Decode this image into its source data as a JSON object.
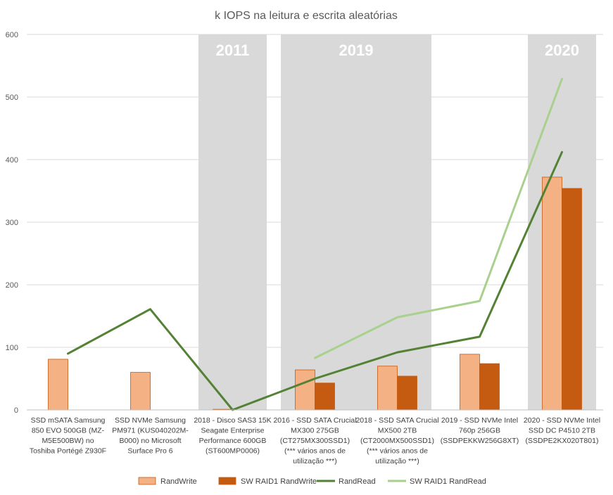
{
  "chart_data": {
    "type": "bar",
    "title": "k IOPS na leitura e escrita aleatórias",
    "xlabel": "",
    "ylabel": "",
    "ylim": [
      0,
      600
    ],
    "yticks": [
      0,
      100,
      200,
      300,
      400,
      500,
      600
    ],
    "grid": true,
    "legend_position": "bottom",
    "categories": [
      [
        "SSD mSATA Samsung",
        "850 EVO 500GB (MZ-",
        "M5E500BW) no",
        "Toshiba Portégé Z930F"
      ],
      [
        "SSD NVMe Samsung",
        "PM971 (KUS040202M-",
        "B000) no Microsoft",
        "Surface Pro 6"
      ],
      [
        "2018 - Disco SAS3 15K",
        "Seagate Enterprise",
        "Performance 600GB",
        "(ST600MP0006)"
      ],
      [
        "2016 - SSD SATA Crucial",
        "MX300 275GB",
        "(CT275MX300SSD1)",
        "(*** vários anos de",
        "utilização ***)"
      ],
      [
        "2018 - SSD SATA Crucial",
        "MX500 2TB",
        "(CT2000MX500SSD1)",
        "(*** vários anos de",
        "utilização ***)"
      ],
      [
        "2019 - SSD NVMe Intel",
        "760p 256GB",
        "(SSDPEKKW256G8XT)"
      ],
      [
        "2020 - SSD NVMe Intel",
        "SSD DC P4510 2TB",
        "(SSDPE2KX020T801)"
      ]
    ],
    "year_bands": [
      {
        "label": "2011",
        "categories": [
          2,
          2
        ]
      },
      {
        "label": "2019",
        "categories": [
          3,
          4
        ]
      },
      {
        "label": "2020",
        "categories": [
          6,
          6
        ]
      }
    ],
    "series": [
      {
        "name": "RandWrite",
        "kind": "bar",
        "color": "#F4B183",
        "stroke": "#C55A11",
        "values": [
          81,
          60,
          1,
          64,
          70,
          89,
          372
        ]
      },
      {
        "name": "SW RAID1 RandWrite",
        "kind": "bar",
        "color": "#C55A11",
        "stroke": "#C55A11",
        "values": [
          null,
          null,
          null,
          43,
          54,
          74,
          354
        ]
      },
      {
        "name": "RandRead",
        "kind": "line",
        "color": "#548235",
        "values": [
          90,
          161,
          0,
          50,
          92,
          117,
          412
        ]
      },
      {
        "name": "SW RAID1 RandRead",
        "kind": "line",
        "color": "#A9D18E",
        "values": [
          null,
          null,
          null,
          83,
          148,
          174,
          529
        ]
      }
    ]
  }
}
